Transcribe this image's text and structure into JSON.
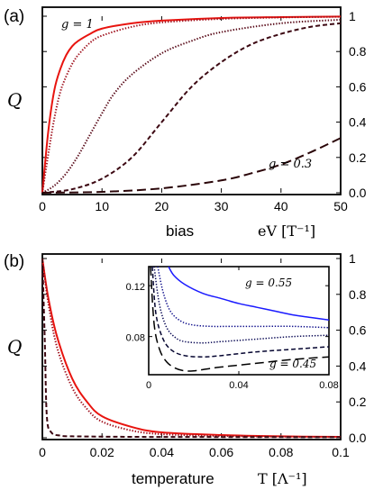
{
  "chart_data": [
    {
      "type": "line",
      "panel_label": "(a)",
      "y_symbol": "Q",
      "xlabel_word": "bias",
      "xlabel_math": "eV [T⁻¹]",
      "xlim": [
        0,
        50
      ],
      "ylim": [
        0,
        1
      ],
      "x_ticks": [
        "0",
        "10",
        "20",
        "30",
        "40",
        "50"
      ],
      "y_ticks_right": [
        "0.0",
        "0.2",
        "0.4",
        "0.6",
        "0.8",
        "1"
      ],
      "annotations": [
        "g = 1",
        "g = 0.3"
      ],
      "series": [
        {
          "style": "solid",
          "color": "#e8140f",
          "x": [
            0,
            1,
            2,
            3,
            4,
            5,
            6,
            8,
            10,
            15,
            20,
            30,
            40,
            50
          ],
          "y": [
            0,
            0.35,
            0.58,
            0.7,
            0.78,
            0.83,
            0.86,
            0.9,
            0.93,
            0.96,
            0.975,
            0.99,
            0.995,
            0.998
          ]
        },
        {
          "style": "dotted",
          "color": "#a0121e",
          "x": [
            0,
            1,
            2,
            3,
            4,
            5,
            6,
            8,
            10,
            15,
            20,
            30,
            40,
            50
          ],
          "y": [
            0,
            0.22,
            0.42,
            0.57,
            0.66,
            0.73,
            0.78,
            0.85,
            0.89,
            0.94,
            0.965,
            0.985,
            0.993,
            0.997
          ]
        },
        {
          "style": "dotted",
          "color": "#5a0c1a",
          "x": [
            0,
            2,
            4,
            6,
            8,
            10,
            12,
            15,
            20,
            25,
            30,
            40,
            50
          ],
          "y": [
            0,
            0.04,
            0.11,
            0.21,
            0.33,
            0.45,
            0.56,
            0.67,
            0.79,
            0.86,
            0.91,
            0.96,
            0.98
          ]
        },
        {
          "style": "dashed",
          "color": "#3c0812",
          "x": [
            0,
            5,
            10,
            15,
            20,
            25,
            30,
            35,
            40,
            45,
            50
          ],
          "y": [
            0,
            0.02,
            0.08,
            0.2,
            0.4,
            0.6,
            0.74,
            0.84,
            0.9,
            0.94,
            0.96
          ]
        },
        {
          "style": "longdash",
          "color": "#2a0508",
          "x": [
            0,
            10,
            20,
            30,
            35,
            40,
            45,
            50
          ],
          "y": [
            0,
            0.005,
            0.025,
            0.07,
            0.11,
            0.16,
            0.23,
            0.31
          ]
        }
      ]
    },
    {
      "type": "line",
      "panel_label": "(b)",
      "y_symbol": "Q",
      "xlabel_word": "temperature",
      "xlabel_math": "T [Λ⁻¹]",
      "xlim": [
        0,
        0.1
      ],
      "ylim": [
        0,
        1
      ],
      "x_ticks": [
        "0",
        "0.02",
        "0.04",
        "0.06",
        "0.08",
        "0.1"
      ],
      "y_ticks_right": [
        "0.0",
        "0.2",
        "0.4",
        "0.6",
        "0.8",
        "1"
      ],
      "series": [
        {
          "style": "solid",
          "color": "#e8140f",
          "x": [
            0,
            0.002,
            0.005,
            0.01,
            0.015,
            0.02,
            0.03,
            0.04,
            0.06,
            0.08,
            0.1
          ],
          "y": [
            1,
            0.78,
            0.56,
            0.33,
            0.2,
            0.12,
            0.06,
            0.03,
            0.015,
            0.008,
            0.005
          ]
        },
        {
          "style": "dotted",
          "color": "#a0121e",
          "x": [
            0,
            0.002,
            0.005,
            0.01,
            0.015,
            0.02,
            0.03,
            0.04,
            0.06,
            0.08,
            0.1
          ],
          "y": [
            1,
            0.75,
            0.5,
            0.28,
            0.16,
            0.09,
            0.04,
            0.02,
            0.01,
            0.006,
            0.004
          ]
        },
        {
          "style": "dashed",
          "color": "#3c0812",
          "x": [
            0,
            0.0008,
            0.0015,
            0.003,
            0.006,
            0.01,
            0.03,
            0.06,
            0.1
          ],
          "y": [
            1,
            0.55,
            0.12,
            0.03,
            0.012,
            0.008,
            0.005,
            0.004,
            0.003
          ]
        }
      ],
      "inset": {
        "xlim": [
          0,
          0.1
        ],
        "ylim": [
          0.05,
          0.135
        ],
        "x_ticks": [
          "0",
          "0.04",
          "0.08"
        ],
        "y_ticks": [
          "0.08",
          "0.12"
        ],
        "annotations": [
          "g = 0.55",
          "g = 0.45"
        ],
        "series": [
          {
            "style": "solid",
            "color": "#1a1aff",
            "x": [
              0.011,
              0.014,
              0.02,
              0.03,
              0.04,
              0.05,
              0.06,
              0.07,
              0.08,
              0.09,
              0.1
            ],
            "y": [
              0.135,
              0.128,
              0.121,
              0.114,
              0.11,
              0.106,
              0.103,
              0.1,
              0.097,
              0.095,
              0.093
            ]
          },
          {
            "style": "dotted",
            "color": "#0d0d8a",
            "x": [
              0.005,
              0.008,
              0.012,
              0.018,
              0.025,
              0.035,
              0.045,
              0.06,
              0.08,
              0.1
            ],
            "y": [
              0.135,
              0.115,
              0.1,
              0.092,
              0.089,
              0.088,
              0.088,
              0.088,
              0.088,
              0.087
            ]
          },
          {
            "style": "dotted",
            "color": "#0a0a55",
            "x": [
              0.003,
              0.006,
              0.01,
              0.015,
              0.02,
              0.03,
              0.04,
              0.06,
              0.08,
              0.1
            ],
            "y": [
              0.135,
              0.105,
              0.087,
              0.079,
              0.076,
              0.075,
              0.076,
              0.078,
              0.08,
              0.081
            ]
          },
          {
            "style": "dashed",
            "color": "#050530",
            "x": [
              0.002,
              0.004,
              0.008,
              0.013,
              0.02,
              0.03,
              0.04,
              0.06,
              0.08,
              0.1
            ],
            "y": [
              0.135,
              0.098,
              0.078,
              0.069,
              0.065,
              0.064,
              0.065,
              0.068,
              0.07,
              0.072
            ]
          },
          {
            "style": "longdash",
            "color": "#000000",
            "x": [
              0.001,
              0.003,
              0.006,
              0.01,
              0.015,
              0.02,
              0.025,
              0.03,
              0.04,
              0.06,
              0.08,
              0.1
            ],
            "y": [
              0.135,
              0.09,
              0.07,
              0.06,
              0.055,
              0.053,
              0.053,
              0.054,
              0.056,
              0.059,
              0.062,
              0.064
            ]
          }
        ]
      }
    }
  ]
}
